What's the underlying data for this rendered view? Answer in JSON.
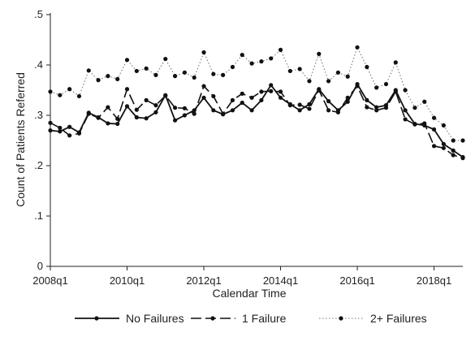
{
  "chart_data": {
    "type": "line",
    "xlabel": "Calendar Time",
    "ylabel": "Count of Patients Referred",
    "xlim": [
      "2008q1",
      "2018q4"
    ],
    "ylim": [
      0,
      0.5
    ],
    "y_ticks": [
      {
        "value": 0,
        "label": "0"
      },
      {
        "value": 0.1,
        "label": ".1"
      },
      {
        "value": 0.2,
        "label": ".2"
      },
      {
        "value": 0.3,
        "label": ".3"
      },
      {
        "value": 0.4,
        "label": ".4"
      },
      {
        "value": 0.5,
        "label": ".5"
      }
    ],
    "x_ticks": [
      {
        "value": "2008q1",
        "label": "2008q1"
      },
      {
        "value": "2010q1",
        "label": "2010q1"
      },
      {
        "value": "2012q1",
        "label": "2012q1"
      },
      {
        "value": "2014q1",
        "label": "2014q1"
      },
      {
        "value": "2016q1",
        "label": "2016q1"
      },
      {
        "value": "2018q1",
        "label": "2018q1"
      }
    ],
    "grid": false,
    "legend_position": "bottom",
    "x": [
      "2008q1",
      "2008q2",
      "2008q3",
      "2008q4",
      "2009q1",
      "2009q2",
      "2009q3",
      "2009q4",
      "2010q1",
      "2010q2",
      "2010q3",
      "2010q4",
      "2011q1",
      "2011q2",
      "2011q3",
      "2011q4",
      "2012q1",
      "2012q2",
      "2012q3",
      "2012q4",
      "2013q1",
      "2013q2",
      "2013q3",
      "2013q4",
      "2014q1",
      "2014q2",
      "2014q3",
      "2014q4",
      "2015q1",
      "2015q2",
      "2015q3",
      "2015q4",
      "2016q1",
      "2016q2",
      "2016q3",
      "2016q4",
      "2017q1",
      "2017q2",
      "2017q3",
      "2017q4",
      "2018q1",
      "2018q2",
      "2018q3",
      "2018q4"
    ],
    "series": [
      {
        "name": "No Failures",
        "style": "solid",
        "values": [
          0.27,
          0.268,
          0.277,
          0.266,
          0.305,
          0.296,
          0.284,
          0.283,
          0.318,
          0.296,
          0.294,
          0.306,
          0.34,
          0.29,
          0.3,
          0.31,
          0.335,
          0.31,
          0.302,
          0.31,
          0.325,
          0.31,
          0.33,
          0.36,
          0.335,
          0.322,
          0.31,
          0.322,
          0.352,
          0.328,
          0.31,
          0.327,
          0.362,
          0.33,
          0.316,
          0.32,
          0.35,
          0.31,
          0.283,
          0.28,
          0.272,
          0.243,
          0.23,
          0.217
        ]
      },
      {
        "name": "1 Failure",
        "style": "dashed",
        "values": [
          0.285,
          0.275,
          0.26,
          0.264,
          0.303,
          0.295,
          0.316,
          0.293,
          0.352,
          0.311,
          0.33,
          0.32,
          0.339,
          0.315,
          0.314,
          0.303,
          0.358,
          0.338,
          0.303,
          0.33,
          0.343,
          0.335,
          0.347,
          0.348,
          0.347,
          0.32,
          0.321,
          0.313,
          0.35,
          0.31,
          0.306,
          0.335,
          0.358,
          0.316,
          0.31,
          0.315,
          0.347,
          0.292,
          0.282,
          0.284,
          0.239,
          0.235,
          0.221,
          0.215
        ]
      },
      {
        "name": "2+ Failures",
        "style": "dotted",
        "values": [
          0.347,
          0.34,
          0.352,
          0.338,
          0.389,
          0.37,
          0.378,
          0.372,
          0.41,
          0.388,
          0.393,
          0.38,
          0.412,
          0.378,
          0.385,
          0.375,
          0.425,
          0.382,
          0.38,
          0.396,
          0.42,
          0.403,
          0.407,
          0.413,
          0.43,
          0.388,
          0.392,
          0.368,
          0.422,
          0.368,
          0.385,
          0.377,
          0.435,
          0.396,
          0.355,
          0.362,
          0.405,
          0.35,
          0.315,
          0.327,
          0.295,
          0.28,
          0.25,
          0.25
        ]
      }
    ]
  }
}
